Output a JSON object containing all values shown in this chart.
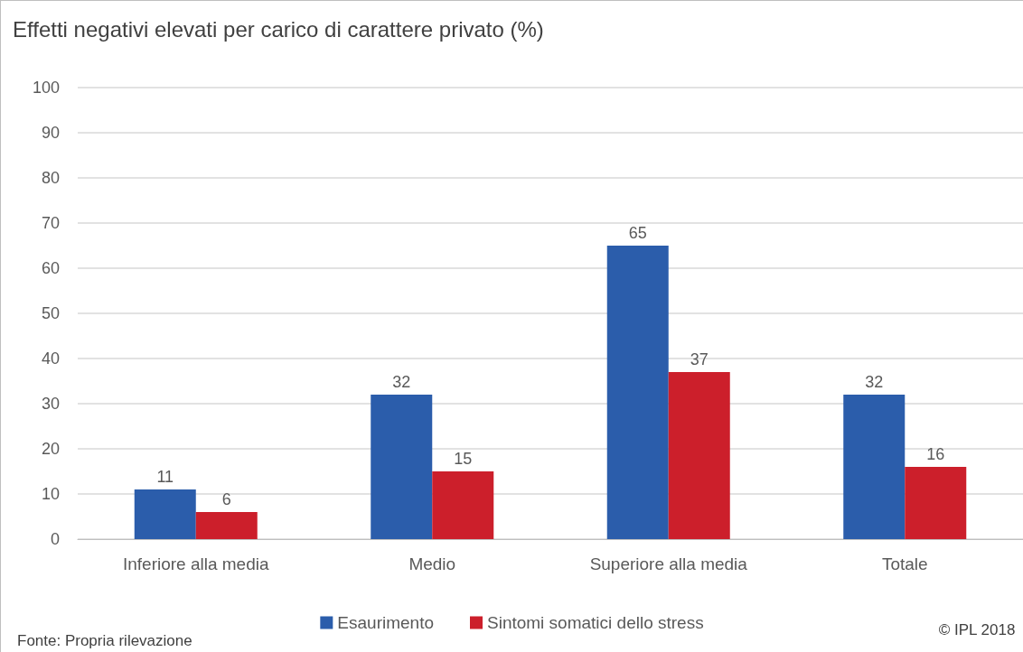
{
  "chart_data": {
    "type": "bar",
    "title": "Effetti negativi elevati per carico di carattere privato (%)",
    "categories": [
      "Inferiore alla media",
      "Medio",
      "Superiore alla media",
      "Totale"
    ],
    "series": [
      {
        "name": "Esaurimento",
        "color": "#2b5dab",
        "values": [
          11,
          32,
          65,
          32
        ]
      },
      {
        "name": "Sintomi somatici dello stress",
        "color": "#cc1f2b",
        "values": [
          6,
          15,
          37,
          16
        ]
      }
    ],
    "ylim": [
      0,
      100
    ],
    "yticks": [
      0,
      10,
      20,
      30,
      40,
      50,
      60,
      70,
      80,
      90,
      100
    ],
    "grid": true,
    "legend": "bottom",
    "data_labels": true,
    "annotations": [
      "Fonte: Propria rilevazione",
      "© IPL 2018"
    ]
  }
}
